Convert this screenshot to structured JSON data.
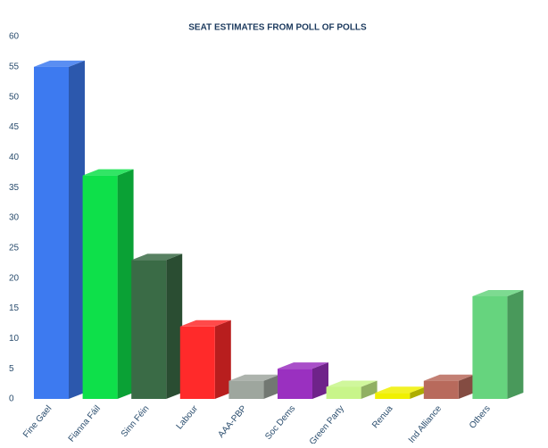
{
  "chart_data": {
    "type": "bar3d",
    "title": "SEAT ESTIMATES FROM POLL OF POLLS",
    "categories": [
      "Fine Gael",
      "Fianna Fáil",
      "Sinn Féin",
      "Labour",
      "AAA-PBP",
      "Soc Dems",
      "Green Party",
      "Renua",
      "Ind Alliance",
      "Others"
    ],
    "values": [
      55,
      37,
      23,
      12,
      3,
      5,
      2,
      1,
      3,
      17
    ],
    "colors": [
      "#3d7af0",
      "#0ee04a",
      "#3a6b46",
      "#ff2a2a",
      "#9ea69e",
      "#9a30c0",
      "#c8f58a",
      "#f0f000",
      "#b86a5c",
      "#66d47e"
    ],
    "ylim": [
      0,
      60
    ],
    "yticks": [
      0,
      5,
      10,
      15,
      20,
      25,
      30,
      35,
      40,
      45,
      50,
      55,
      60
    ],
    "grid": false
  }
}
